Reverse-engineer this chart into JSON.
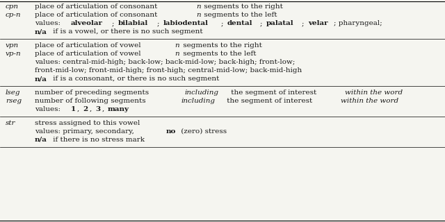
{
  "background_color": "#f5f5f0",
  "text_color": "#1a1a1a",
  "sections": [
    {
      "entries": [
        {
          "label": "cpn",
          "label_italic": true,
          "desc": [
            {
              "parts": [
                {
                  "text": "place of articulation of consonant ",
                  "style": "normal"
                },
                {
                  "text": "n",
                  "style": "italic"
                },
                {
                  "text": " segments to the right",
                  "style": "normal"
                }
              ]
            }
          ]
        },
        {
          "label": "cp-n",
          "label_italic": true,
          "desc": [
            {
              "parts": [
                {
                  "text": "place of articulation of consonant ",
                  "style": "normal"
                },
                {
                  "text": "n",
                  "style": "italic"
                },
                {
                  "text": " segments to the left",
                  "style": "normal"
                }
              ]
            },
            {
              "parts": [
                {
                  "text": "values: ",
                  "style": "normal"
                },
                {
                  "text": "alveolar",
                  "style": "bold"
                },
                {
                  "text": "; ",
                  "style": "normal"
                },
                {
                  "text": "bilabial",
                  "style": "bold"
                },
                {
                  "text": "; ",
                  "style": "normal"
                },
                {
                  "text": "labiodental",
                  "style": "bold"
                },
                {
                  "text": "; ",
                  "style": "normal"
                },
                {
                  "text": "dental",
                  "style": "bold"
                },
                {
                  "text": "; ",
                  "style": "normal"
                },
                {
                  "text": "palatal",
                  "style": "bold"
                },
                {
                  "text": "; ",
                  "style": "normal"
                },
                {
                  "text": "velar",
                  "style": "bold"
                },
                {
                  "text": "; pharyngeal;",
                  "style": "normal"
                }
              ]
            },
            {
              "parts": [
                {
                  "text": "n/a",
                  "style": "bold"
                },
                {
                  "text": " if is a vowel, or there is no such segment",
                  "style": "normal"
                }
              ]
            }
          ]
        }
      ]
    },
    {
      "entries": [
        {
          "label": "vpn",
          "label_italic": true,
          "desc": [
            {
              "parts": [
                {
                  "text": "place of articulation of vowel ",
                  "style": "normal"
                },
                {
                  "text": "n",
                  "style": "italic"
                },
                {
                  "text": " segments to the right",
                  "style": "normal"
                }
              ]
            }
          ]
        },
        {
          "label": "vp-n",
          "label_italic": true,
          "desc": [
            {
              "parts": [
                {
                  "text": "place of articulation of vowel ",
                  "style": "normal"
                },
                {
                  "text": "n",
                  "style": "italic"
                },
                {
                  "text": " segments to the left",
                  "style": "normal"
                }
              ]
            },
            {
              "parts": [
                {
                  "text": "values: central-mid-high; back-low; back-mid-low; back-high; front-low;",
                  "style": "normal"
                }
              ]
            },
            {
              "parts": [
                {
                  "text": "front-mid-low; front-mid-high; front-high; central-mid-low; back-mid-high",
                  "style": "normal"
                }
              ]
            },
            {
              "parts": [
                {
                  "text": "n/a",
                  "style": "bold"
                },
                {
                  "text": " if is a consonant, or there is no such segment",
                  "style": "normal"
                }
              ]
            }
          ]
        }
      ]
    },
    {
      "entries": [
        {
          "label": "lseg",
          "label_italic": true,
          "desc": [
            {
              "parts": [
                {
                  "text": "number of preceding segments ",
                  "style": "normal"
                },
                {
                  "text": "including",
                  "style": "italic"
                },
                {
                  "text": " the segment of interest ",
                  "style": "normal"
                },
                {
                  "text": "within the word",
                  "style": "italic"
                }
              ]
            }
          ]
        },
        {
          "label": "rseg",
          "label_italic": true,
          "desc": [
            {
              "parts": [
                {
                  "text": "number of following segments ",
                  "style": "normal"
                },
                {
                  "text": "including",
                  "style": "italic"
                },
                {
                  "text": " the segment of interest ",
                  "style": "normal"
                },
                {
                  "text": "within the word",
                  "style": "italic"
                }
              ]
            },
            {
              "parts": [
                {
                  "text": "values: ",
                  "style": "normal"
                },
                {
                  "text": "1",
                  "style": "bold"
                },
                {
                  "text": ", ",
                  "style": "normal"
                },
                {
                  "text": "2",
                  "style": "bold"
                },
                {
                  "text": ", ",
                  "style": "normal"
                },
                {
                  "text": "3",
                  "style": "bold"
                },
                {
                  "text": ", ",
                  "style": "normal"
                },
                {
                  "text": "many",
                  "style": "bold"
                }
              ]
            }
          ]
        }
      ]
    },
    {
      "entries": [
        {
          "label": "str",
          "label_italic": true,
          "desc": [
            {
              "parts": [
                {
                  "text": "stress assigned to this vowel",
                  "style": "normal"
                }
              ]
            },
            {
              "parts": [
                {
                  "text": "values: primary, secondary, ",
                  "style": "normal"
                },
                {
                  "text": "no",
                  "style": "bold"
                },
                {
                  "text": " (zero) stress",
                  "style": "normal"
                }
              ]
            },
            {
              "parts": [
                {
                  "text": "n/a",
                  "style": "bold"
                },
                {
                  "text": " if there is no stress mark",
                  "style": "normal"
                }
              ]
            }
          ]
        }
      ]
    }
  ]
}
